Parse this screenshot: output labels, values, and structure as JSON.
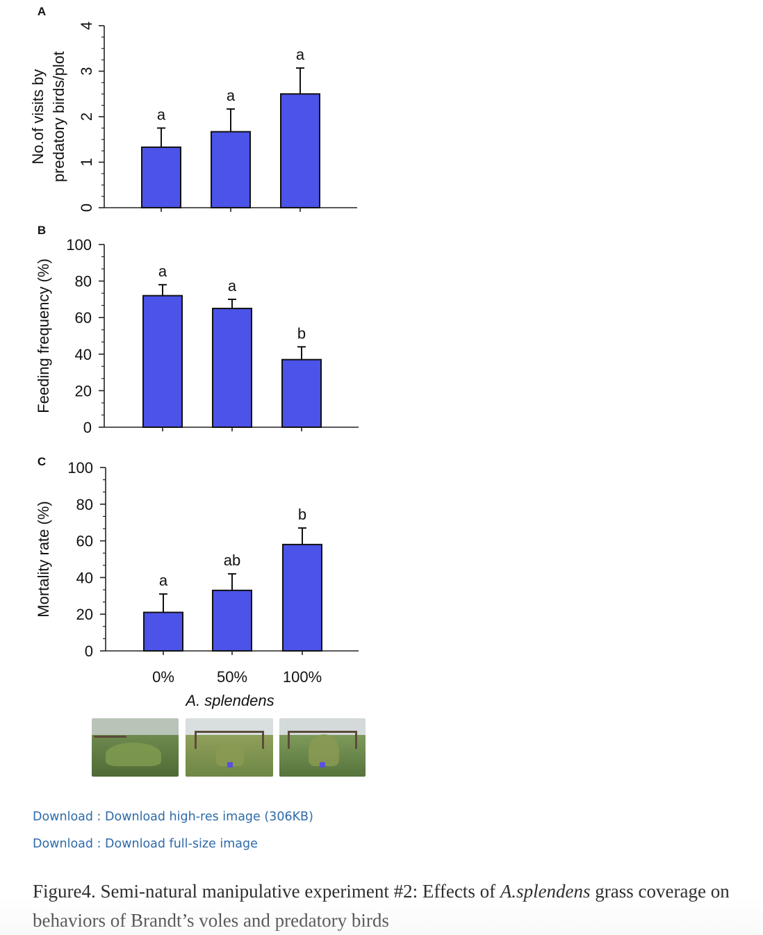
{
  "chart_data": [
    {
      "type": "bar",
      "panel_label": "A",
      "ylabel_lines": [
        "No.of visits by",
        "predatory birds/plot"
      ],
      "ylim": [
        0,
        4
      ],
      "yticks": [
        0,
        1,
        2,
        3,
        4
      ],
      "categories": [
        "0%",
        "50%",
        "100%"
      ],
      "values": [
        1.33,
        1.67,
        2.5
      ],
      "errors": [
        0.42,
        0.5,
        0.57
      ],
      "significance": [
        "a",
        "a",
        "a"
      ],
      "bar_color": "#4b53e8"
    },
    {
      "type": "bar",
      "panel_label": "B",
      "ylabel_lines": [
        "Feeding frequency (%)"
      ],
      "ylim": [
        0,
        100
      ],
      "yticks": [
        0,
        20,
        40,
        60,
        80,
        100
      ],
      "categories": [
        "0%",
        "50%",
        "100%"
      ],
      "values": [
        72,
        65,
        37
      ],
      "errors": [
        6,
        5,
        7
      ],
      "significance": [
        "a",
        "a",
        "b"
      ],
      "bar_color": "#4b53e8"
    },
    {
      "type": "bar",
      "panel_label": "C",
      "ylabel_lines": [
        "Mortality rate (%)"
      ],
      "ylim": [
        0,
        100
      ],
      "yticks": [
        0,
        20,
        40,
        60,
        80,
        100
      ],
      "categories": [
        "0%",
        "50%",
        "100%"
      ],
      "values": [
        21,
        33,
        58
      ],
      "errors": [
        10,
        9,
        9
      ],
      "significance": [
        "a",
        "ab",
        "b"
      ],
      "bar_color": "#4b53e8"
    }
  ],
  "xaxis": {
    "tick_labels": [
      "0%",
      "50%",
      "100%"
    ],
    "title": "A. splendens"
  },
  "photos": [
    {
      "name": "0% coverage plot"
    },
    {
      "name": "50% coverage plot"
    },
    {
      "name": "100% coverage plot"
    }
  ],
  "links": {
    "high_res": "Download : Download high-res image (306KB)",
    "full_size": "Download : Download full-size image"
  },
  "caption": {
    "prefix": "Figure4. Semi-natural manipulative experiment #2: Effects of ",
    "italic": "A.splendens",
    "suffix": " grass coverage on behaviors of Brandt’s voles and predatory birds"
  },
  "colors": {
    "bar": "#4b53e8",
    "link": "#2e6aa8"
  }
}
